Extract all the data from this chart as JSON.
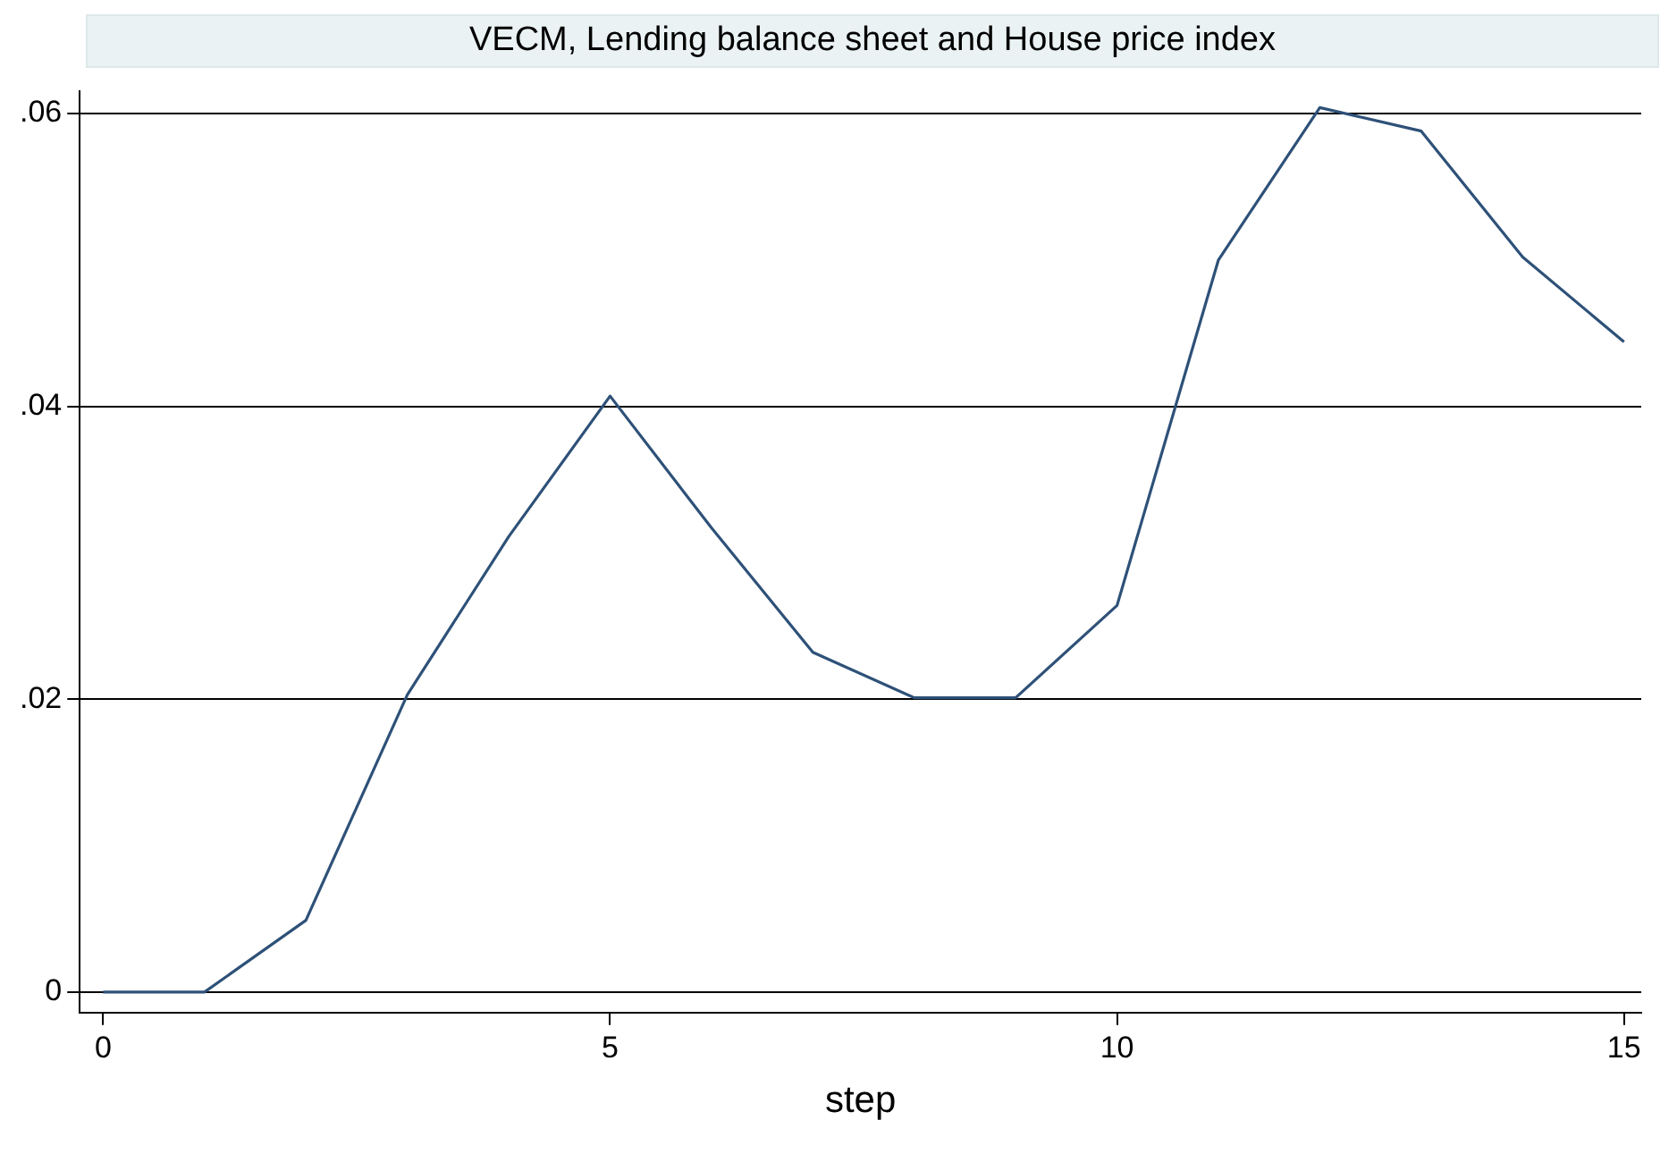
{
  "chart_data": {
    "type": "line",
    "title": "VECM, Lending balance sheet and House price index",
    "xlabel": "step",
    "x": [
      0,
      1,
      2,
      3,
      4,
      5,
      6,
      7,
      8,
      9,
      10,
      11,
      12,
      13,
      14,
      15
    ],
    "series": [
      {
        "color": "#2e5178",
        "values": [
          0,
          0,
          0.0049,
          0.0203,
          0.0311,
          0.0407,
          0.0317,
          0.0232,
          0.0201,
          0.0201,
          0.0264,
          0.05,
          0.0604,
          0.0588,
          0.0502,
          0.0444
        ]
      }
    ],
    "xlim": [
      -0.23,
      15.17
    ],
    "xticks": [
      0,
      5,
      10,
      15
    ],
    "ylim": [
      -0.0014,
      0.0615
    ],
    "yticks": [
      {
        "value": 0,
        "label": "0"
      },
      {
        "value": 0.02,
        "label": ".02"
      },
      {
        "value": 0.04,
        "label": ".04"
      },
      {
        "value": 0.06,
        "label": ".06"
      }
    ],
    "grid": "y",
    "legend": false,
    "marker": "none",
    "line_style": "solid"
  }
}
